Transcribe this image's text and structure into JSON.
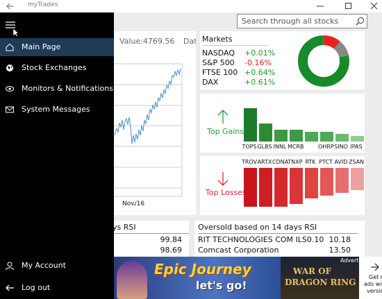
{
  "window": {
    "title": "myTrades"
  },
  "nav": {
    "items": [
      "Main Page",
      "Stock Exchanges",
      "Monitors & Notifications",
      "System Messages"
    ],
    "bottom": [
      "My Account",
      "Log out"
    ]
  },
  "search": {
    "placeholder": "Search through all stocks"
  },
  "chart_panel": {
    "value": "Value:4769.56",
    "date_label": "Dat",
    "x_label": "Nov/16"
  },
  "markets": {
    "title": "Markets",
    "rows": [
      [
        "NASDAQ",
        "+0.01%"
      ],
      [
        "S&P 500",
        "-0.16%"
      ],
      [
        "FTSE 100",
        "+0.64%"
      ],
      [
        "DAX",
        "+0.61%"
      ]
    ]
  },
  "top_gains": {
    "title": "Top Gains",
    "symbols": [
      "TOPS",
      "GLBS",
      "INNL",
      "MCRB",
      "OHRP",
      "SINO",
      "IPAS"
    ]
  },
  "top_losses": {
    "title": "Top Losses",
    "symbols": [
      "TROV",
      "ARTX",
      "CDNA",
      "TNXP",
      "RTK",
      "PTCT",
      "AVID",
      "ZSAN"
    ]
  },
  "overbought": {
    "title": "ys RSI",
    "values": [
      "99.84",
      "98.69"
    ]
  },
  "oversold": {
    "title": "Oversold based on 14 days RSI",
    "rows": [
      [
        "RIT TECHNOLOGIES COM ILS0.10",
        "10.18"
      ],
      [
        "Comcast Corporation",
        "13.50"
      ]
    ]
  },
  "ad": {
    "label": "Advertisement",
    "headline": "Epic Journey",
    "tagline": "let's go!",
    "game": [
      "WAR OF",
      "DRAGON RING"
    ],
    "remove": [
      "Get rid",
      "ads with",
      "versio"
    ]
  }
}
